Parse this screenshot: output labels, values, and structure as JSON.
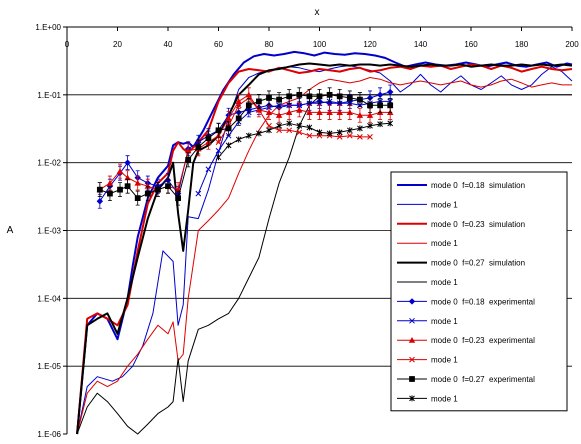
{
  "chart_data": {
    "type": "line",
    "xlabel": "x",
    "ylabel": "A",
    "xlim": [
      0,
      200
    ],
    "ylim": [
      1e-06,
      1
    ],
    "yscale": "log",
    "x_axis_position": "top",
    "grid": "horizontal",
    "legend_position": "right",
    "x_ticks": [
      "0",
      "20",
      "40",
      "60",
      "80",
      "100",
      "120",
      "140",
      "160",
      "180",
      "200"
    ],
    "y_ticks": [
      "1.E-06",
      "1.E-05",
      "1.E-04",
      "1.E-03",
      "1.E-02",
      "1.E-01",
      "1.E+00"
    ],
    "series": [
      {
        "name": "mode 0  f=0.18  simulation",
        "color": "#0000cc",
        "width": 2,
        "marker": "none",
        "x": [
          4,
          8,
          12,
          16,
          20,
          24,
          26,
          28,
          32,
          36,
          40,
          42,
          44,
          46,
          48,
          50,
          54,
          58,
          62,
          66,
          70,
          74,
          78,
          82,
          86,
          90,
          94,
          98,
          102,
          106,
          110,
          114,
          118,
          122,
          126,
          130,
          134,
          138,
          142,
          146,
          150,
          154,
          158,
          162,
          166,
          170,
          174,
          178,
          182,
          186,
          190,
          194,
          198,
          200
        ],
        "y": [
          1e-06,
          4e-05,
          6e-05,
          5e-05,
          2.5e-05,
          0.0001,
          0.0003,
          0.0008,
          0.003,
          0.006,
          0.009,
          0.018,
          0.02,
          0.019,
          0.02,
          0.017,
          0.03,
          0.06,
          0.12,
          0.2,
          0.3,
          0.37,
          0.4,
          0.38,
          0.4,
          0.43,
          0.41,
          0.38,
          0.42,
          0.4,
          0.39,
          0.41,
          0.4,
          0.38,
          0.35,
          0.3,
          0.26,
          0.28,
          0.3,
          0.28,
          0.27,
          0.28,
          0.3,
          0.28,
          0.26,
          0.28,
          0.3,
          0.27,
          0.26,
          0.28,
          0.3,
          0.26,
          0.29,
          0.28
        ]
      },
      {
        "name": "mode 1",
        "color": "#0000cc",
        "width": 1,
        "marker": "none",
        "x": [
          4,
          8,
          12,
          18,
          22,
          26,
          30,
          34,
          38,
          42,
          44,
          46,
          48,
          52,
          56,
          60,
          64,
          68,
          72,
          76,
          80,
          84,
          88,
          92,
          96,
          100,
          104,
          108,
          112,
          116,
          120,
          124,
          128,
          132,
          136,
          140,
          144,
          148,
          152,
          156,
          160,
          164,
          168,
          172,
          176,
          180,
          184,
          188,
          192,
          196,
          200
        ],
        "y": [
          1e-06,
          5e-06,
          7e-06,
          6e-06,
          7e-06,
          1e-05,
          2e-05,
          6e-05,
          0.0005,
          0.00035,
          4e-05,
          8e-05,
          0.0016,
          0.0015,
          0.004,
          0.014,
          0.045,
          0.12,
          0.18,
          0.21,
          0.23,
          0.25,
          0.26,
          0.25,
          0.23,
          0.22,
          0.24,
          0.26,
          0.27,
          0.25,
          0.23,
          0.21,
          0.16,
          0.11,
          0.14,
          0.2,
          0.14,
          0.11,
          0.15,
          0.19,
          0.14,
          0.12,
          0.15,
          0.19,
          0.14,
          0.12,
          0.14,
          0.2,
          0.26,
          0.22,
          0.16
        ]
      },
      {
        "name": "mode 0  f=0.23  simulation",
        "color": "#dd0000",
        "width": 2,
        "marker": "none",
        "x": [
          4,
          8,
          12,
          16,
          20,
          24,
          28,
          32,
          36,
          40,
          42,
          44,
          46,
          48,
          52,
          56,
          60,
          64,
          68,
          72,
          76,
          80,
          84,
          88,
          92,
          96,
          100,
          104,
          108,
          112,
          116,
          120,
          124,
          128,
          132,
          136,
          140,
          144,
          148,
          152,
          156,
          160,
          164,
          168,
          172,
          176,
          180,
          184,
          188,
          192,
          196,
          200
        ],
        "y": [
          1e-06,
          5e-05,
          6e-05,
          5e-05,
          4e-05,
          8e-05,
          0.0005,
          0.0025,
          0.005,
          0.007,
          0.015,
          0.02,
          0.016,
          0.014,
          0.02,
          0.03,
          0.08,
          0.15,
          0.22,
          0.24,
          0.23,
          0.22,
          0.25,
          0.23,
          0.21,
          0.22,
          0.24,
          0.23,
          0.22,
          0.24,
          0.25,
          0.22,
          0.23,
          0.25,
          0.26,
          0.24,
          0.27,
          0.26,
          0.27,
          0.24,
          0.26,
          0.28,
          0.27,
          0.24,
          0.27,
          0.25,
          0.22,
          0.24,
          0.26,
          0.24,
          0.23,
          0.24
        ]
      },
      {
        "name": "mode 1",
        "color": "#dd0000",
        "width": 1,
        "marker": "none",
        "x": [
          4,
          8,
          12,
          16,
          20,
          24,
          28,
          32,
          36,
          40,
          42,
          44,
          46,
          48,
          52,
          56,
          60,
          64,
          68,
          72,
          76,
          80,
          84,
          88,
          92,
          96,
          100,
          104,
          108,
          112,
          116,
          120,
          124,
          128,
          132,
          136,
          140,
          144,
          148,
          152,
          156,
          160,
          164,
          168,
          172,
          176,
          180,
          184,
          188,
          192,
          196,
          200
        ],
        "y": [
          1e-06,
          4e-06,
          6e-06,
          5e-06,
          6e-06,
          1e-05,
          1.5e-05,
          2.5e-05,
          4e-05,
          3e-05,
          4.5e-05,
          1.2e-05,
          1.5e-05,
          0.0001,
          0.001,
          0.0014,
          0.002,
          0.003,
          0.007,
          0.015,
          0.03,
          0.05,
          0.07,
          0.08,
          0.09,
          0.12,
          0.15,
          0.17,
          0.16,
          0.15,
          0.16,
          0.18,
          0.17,
          0.15,
          0.14,
          0.15,
          0.16,
          0.15,
          0.14,
          0.15,
          0.16,
          0.14,
          0.13,
          0.14,
          0.16,
          0.17,
          0.15,
          0.13,
          0.14,
          0.15,
          0.14,
          0.14
        ]
      },
      {
        "name": "mode 0  f=0.27  simulation",
        "color": "#000000",
        "width": 2,
        "marker": "none",
        "x": [
          4,
          8,
          12,
          16,
          20,
          24,
          28,
          32,
          36,
          40,
          42,
          44,
          46,
          48,
          50,
          52,
          56,
          60,
          64,
          68,
          72,
          76,
          80,
          84,
          88,
          92,
          96,
          100,
          104,
          108,
          112,
          116,
          120,
          124,
          128,
          132,
          136,
          140,
          144,
          148,
          152,
          156,
          160,
          164,
          168,
          172,
          176,
          180,
          184,
          188,
          192,
          196,
          200
        ],
        "y": [
          1e-06,
          4e-05,
          5e-05,
          6e-05,
          3e-05,
          0.0001,
          0.0004,
          0.0015,
          0.004,
          0.006,
          0.01,
          0.0018,
          0.0005,
          0.002,
          0.01,
          0.015,
          0.018,
          0.025,
          0.05,
          0.1,
          0.14,
          0.2,
          0.23,
          0.24,
          0.26,
          0.28,
          0.29,
          0.28,
          0.27,
          0.28,
          0.27,
          0.28,
          0.28,
          0.27,
          0.28,
          0.27,
          0.26,
          0.27,
          0.28,
          0.27,
          0.27,
          0.28,
          0.26,
          0.27,
          0.28,
          0.27,
          0.27,
          0.28,
          0.27,
          0.28,
          0.27,
          0.28,
          0.27
        ]
      },
      {
        "name": "mode 1",
        "color": "#000000",
        "width": 1,
        "marker": "none",
        "x": [
          4,
          8,
          12,
          16,
          20,
          24,
          28,
          32,
          36,
          40,
          42,
          44,
          46,
          48,
          52,
          56,
          60,
          64,
          68,
          72,
          76,
          80,
          84,
          88,
          92,
          96,
          100,
          104,
          108,
          112,
          116,
          120,
          124,
          128,
          132,
          136,
          140,
          144,
          148,
          152,
          156,
          160,
          164,
          168,
          172,
          176,
          180,
          184,
          188,
          192,
          196,
          200
        ],
        "y": [
          1e-06,
          2.5e-06,
          4e-06,
          3e-06,
          2e-06,
          1.3e-06,
          1e-06,
          1.4e-06,
          2e-06,
          2.5e-06,
          3e-06,
          1.3e-05,
          3e-06,
          1.2e-05,
          3.5e-05,
          4e-05,
          5e-05,
          6e-05,
          0.0001,
          0.0002,
          0.0004,
          0.0015,
          0.005,
          0.012,
          0.035,
          0.07,
          0.095,
          0.1,
          0.1,
          0.1,
          0.1,
          0.1,
          0.1,
          0.1,
          0.1,
          0.1,
          0.1,
          0.1,
          0.1,
          0.1,
          0.1,
          0.1,
          0.1,
          0.1,
          0.1,
          0.1,
          0.1,
          0.1,
          0.1,
          0.1,
          0.1,
          0.1
        ]
      },
      {
        "name": "mode 0  f=0.18  experimental",
        "color": "#0000cc",
        "width": 1,
        "marker": "diamond",
        "x": [
          13,
          17,
          21,
          24,
          28,
          32,
          36,
          40,
          44,
          48,
          52,
          56,
          60,
          64,
          68,
          72,
          76,
          80,
          84,
          88,
          92,
          96,
          100,
          104,
          108,
          112,
          116,
          120,
          124,
          128
        ],
        "y": [
          0.0027,
          0.0045,
          0.007,
          0.01,
          0.006,
          0.005,
          0.0045,
          0.0055,
          0.0035,
          0.016,
          0.02,
          0.025,
          0.03,
          0.05,
          0.055,
          0.06,
          0.065,
          0.07,
          0.065,
          0.07,
          0.07,
          0.075,
          0.08,
          0.075,
          0.075,
          0.08,
          0.085,
          0.09,
          0.1,
          0.11
        ]
      },
      {
        "name": "mode 1",
        "color": "#0000cc",
        "width": 1,
        "marker": "x",
        "x": [
          52,
          56,
          60,
          64,
          68,
          72,
          76,
          80,
          84,
          88,
          92,
          96,
          100,
          104,
          108,
          112,
          116,
          120,
          124,
          128
        ],
        "y": [
          0.0035,
          0.008,
          0.015,
          0.025,
          0.04,
          0.055,
          0.06,
          0.065,
          0.07,
          0.07,
          0.07,
          0.075,
          0.075,
          0.08,
          0.075,
          0.075,
          0.07,
          0.075,
          0.08,
          0.08
        ]
      },
      {
        "name": "mode 0  f=0.23  experimental",
        "color": "#dd0000",
        "width": 1,
        "marker": "triangle",
        "x": [
          13,
          17,
          21,
          24,
          28,
          32,
          36,
          40,
          44,
          48,
          52,
          56,
          60,
          64,
          68,
          72,
          76,
          80,
          84,
          88,
          92,
          96,
          100,
          104,
          108,
          112,
          116,
          120,
          124,
          128
        ],
        "y": [
          0.004,
          0.005,
          0.0075,
          0.006,
          0.005,
          0.0045,
          0.004,
          0.0045,
          0.004,
          0.015,
          0.016,
          0.02,
          0.025,
          0.045,
          0.08,
          0.1,
          0.06,
          0.055,
          0.05,
          0.055,
          0.06,
          0.055,
          0.055,
          0.055,
          0.055,
          0.055,
          0.05,
          0.05,
          0.055,
          0.055
        ]
      },
      {
        "name": "mode 1",
        "color": "#dd0000",
        "width": 1,
        "marker": "x",
        "x": [
          60,
          64,
          68,
          72,
          76,
          80,
          84,
          88,
          92,
          96,
          100,
          104,
          108,
          112,
          116,
          120
        ],
        "y": [
          0.02,
          0.035,
          0.07,
          0.09,
          0.06,
          0.035,
          0.03,
          0.03,
          0.028,
          0.025,
          0.025,
          0.025,
          0.024,
          0.025,
          0.024,
          0.024
        ]
      },
      {
        "name": "mode 0  f=0.27  experimental",
        "color": "#000000",
        "width": 1,
        "marker": "square",
        "x": [
          13,
          17,
          21,
          24,
          28,
          32,
          36,
          40,
          44,
          48,
          52,
          56,
          60,
          64,
          68,
          72,
          76,
          80,
          84,
          88,
          92,
          96,
          100,
          104,
          108,
          112,
          116,
          120,
          124,
          128
        ],
        "y": [
          0.004,
          0.0035,
          0.004,
          0.0045,
          0.003,
          0.0035,
          0.004,
          0.0045,
          0.003,
          0.011,
          0.017,
          0.023,
          0.03,
          0.032,
          0.045,
          0.07,
          0.08,
          0.09,
          0.085,
          0.095,
          0.1,
          0.095,
          0.095,
          0.1,
          0.095,
          0.09,
          0.085,
          0.07,
          0.07,
          0.07
        ]
      },
      {
        "name": "mode 1",
        "color": "#000000",
        "width": 1,
        "marker": "star",
        "x": [
          60,
          64,
          68,
          72,
          76,
          80,
          84,
          88,
          92,
          96,
          100,
          104,
          108,
          112,
          116,
          120,
          124,
          128
        ],
        "y": [
          0.012,
          0.018,
          0.022,
          0.025,
          0.027,
          0.03,
          0.035,
          0.038,
          0.035,
          0.033,
          0.028,
          0.027,
          0.028,
          0.03,
          0.032,
          0.035,
          0.037,
          0.038
        ]
      }
    ]
  }
}
